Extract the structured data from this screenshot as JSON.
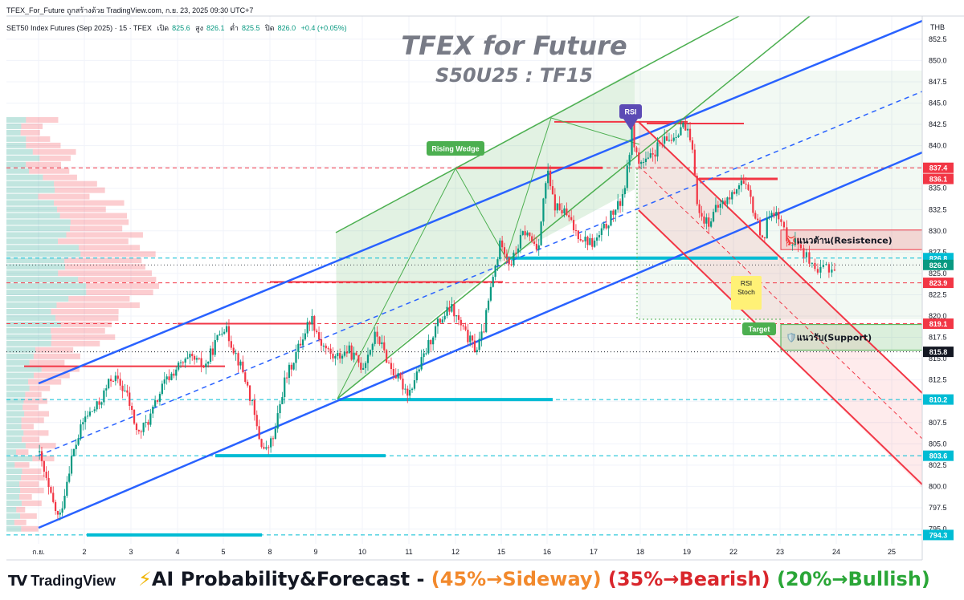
{
  "header": {
    "publish_line": "TFEX_For_Future ถูกสร้างด้วย TradingView.com, ก.ย. 23, 2025 09:30 UTC+7",
    "symbol": "SET50 Index Futures (Sep 2025) · 15 · TFEX",
    "open_label": "เปิด",
    "open_value": "825.6",
    "high_label": "สูง",
    "high_value": "826.1",
    "low_label": "ต่ำ",
    "low_value": "825.5",
    "close_label": "ปิด",
    "close_value": "826.0",
    "change": "+0.4 (+0.05%)"
  },
  "title": {
    "line1": "TFEX for Future",
    "line2": "S50U25 : TF15"
  },
  "currency": "THB",
  "annotations": {
    "rising_wedge": "Rising Wedge",
    "rsi_top": "RSI",
    "rsi_stoch": "RSI\nStoch",
    "target": "Target",
    "resistance": "💢แนวต้าน(Resistence)",
    "support": "🛡️แนวรับ(Support)"
  },
  "footer": {
    "logo_text": "TradingView",
    "forecast_prefix": "⚡",
    "forecast_title": "AI Probability&Forecast - ",
    "sideway": "(45%→Sideway)",
    "bearish": "(35%→Bearish)",
    "bullish": "(20%→Bullish)"
  },
  "colors": {
    "up": "#089981",
    "down": "#f23645",
    "channel_blue": "#2962ff",
    "wedge_green": "#4caf50",
    "level_red": "#f23645",
    "level_cyan": "#00bcd4",
    "bearish_channel": "#f23645"
  },
  "chart_data": {
    "type": "candlestick",
    "title": "TFEX for Future",
    "subtitle": "S50U25 : TF15",
    "x_ticks": [
      "ก.ย.",
      "2",
      "3",
      "4",
      "5",
      "8",
      "9",
      "10",
      "11",
      "12",
      "15",
      "16",
      "17",
      "18",
      "19",
      "22",
      "23",
      "24",
      "25"
    ],
    "y_ticks": [
      795.0,
      797.5,
      800.0,
      802.5,
      805.0,
      807.5,
      810.0,
      812.5,
      815.0,
      817.5,
      820.0,
      822.5,
      825.0,
      827.5,
      830.0,
      832.5,
      835.0,
      837.5,
      840.0,
      842.5,
      845.0,
      847.5,
      850.0,
      852.5
    ],
    "ylim": [
      793.5,
      853
    ],
    "price_labels": [
      {
        "value": 837.4,
        "color": "#f23645"
      },
      {
        "value": 836.1,
        "color": "#f23645"
      },
      {
        "value": 826.8,
        "color": "#00bcd4"
      },
      {
        "value": 826.0,
        "color": "#089981"
      },
      {
        "value": 823.9,
        "color": "#f23645"
      },
      {
        "value": 819.1,
        "color": "#f23645"
      },
      {
        "value": 815.8,
        "color": "#131722"
      },
      {
        "value": 810.2,
        "color": "#00bcd4"
      },
      {
        "value": 803.6,
        "color": "#00bcd4"
      },
      {
        "value": 794.3,
        "color": "#00bcd4"
      }
    ],
    "price_path": [
      [
        0.0,
        804
      ],
      [
        0.25,
        799
      ],
      [
        0.45,
        796
      ],
      [
        0.7,
        803
      ],
      [
        1.0,
        808
      ],
      [
        1.3,
        809.5
      ],
      [
        1.6,
        813
      ],
      [
        1.9,
        811
      ],
      [
        2.15,
        806
      ],
      [
        2.4,
        808
      ],
      [
        2.7,
        812
      ],
      [
        3.0,
        814
      ],
      [
        3.3,
        815
      ],
      [
        3.6,
        814
      ],
      [
        4.0,
        819
      ],
      [
        4.2,
        816.5
      ],
      [
        4.45,
        813
      ],
      [
        4.6,
        810
      ],
      [
        4.75,
        806
      ],
      [
        4.9,
        804
      ],
      [
        5.1,
        806
      ],
      [
        5.3,
        812
      ],
      [
        5.6,
        816
      ],
      [
        5.9,
        820
      ],
      [
        6.1,
        817
      ],
      [
        6.4,
        815
      ],
      [
        6.7,
        816
      ],
      [
        7.0,
        814
      ],
      [
        7.3,
        818
      ],
      [
        7.6,
        814
      ],
      [
        7.85,
        812
      ],
      [
        8.0,
        811
      ],
      [
        8.3,
        815
      ],
      [
        8.6,
        819
      ],
      [
        8.9,
        821
      ],
      [
        9.2,
        818
      ],
      [
        9.45,
        816
      ],
      [
        9.6,
        818
      ],
      [
        9.8,
        824
      ],
      [
        10.0,
        829
      ],
      [
        10.2,
        826
      ],
      [
        10.5,
        830
      ],
      [
        10.8,
        828
      ],
      [
        11.0,
        837
      ],
      [
        11.15,
        833
      ],
      [
        11.4,
        832
      ],
      [
        11.6,
        830
      ],
      [
        11.8,
        829
      ],
      [
        12.0,
        828.5
      ],
      [
        12.2,
        830
      ],
      [
        12.4,
        832
      ],
      [
        12.55,
        833
      ],
      [
        12.7,
        836
      ],
      [
        12.82,
        842
      ],
      [
        12.95,
        838
      ],
      [
        13.15,
        838
      ],
      [
        13.4,
        840
      ],
      [
        13.7,
        841
      ],
      [
        13.9,
        842.5
      ],
      [
        14.05,
        841
      ],
      [
        14.15,
        838
      ],
      [
        14.25,
        832
      ],
      [
        14.45,
        831
      ],
      [
        14.7,
        833
      ],
      [
        14.95,
        834
      ],
      [
        15.15,
        836
      ],
      [
        15.35,
        834
      ],
      [
        15.5,
        831
      ],
      [
        15.65,
        829
      ],
      [
        15.8,
        833
      ],
      [
        16.0,
        831
      ],
      [
        16.15,
        829
      ],
      [
        16.35,
        828.5
      ],
      [
        16.5,
        826.5
      ],
      [
        16.65,
        824.5
      ],
      [
        16.8,
        826
      ],
      [
        16.93,
        825.5
      ],
      [
        17.0,
        826.0
      ]
    ]
  }
}
